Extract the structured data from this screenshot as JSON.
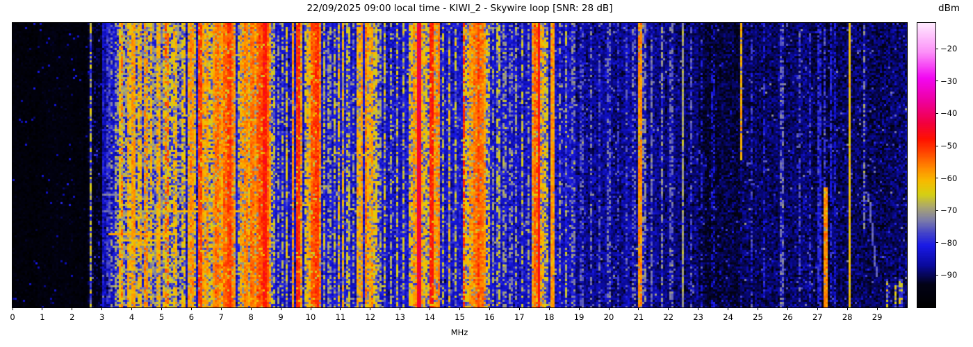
{
  "chart_data": {
    "type": "heatmap",
    "title": "22/09/2025 09:00 local time - KIWI_2 - Skywire loop [SNR: 28 dB]",
    "xlabel": "MHz",
    "ylabel": "",
    "colorbar_label": "dBm",
    "x_range": [
      0,
      30
    ],
    "x_ticks": [
      0,
      1,
      2,
      3,
      4,
      5,
      6,
      7,
      8,
      9,
      10,
      11,
      12,
      13,
      14,
      15,
      16,
      17,
      18,
      19,
      20,
      21,
      22,
      23,
      24,
      25,
      26,
      27,
      28,
      29
    ],
    "value_range": [
      -100,
      -12
    ],
    "colorbar_ticks": [
      -20,
      -30,
      -40,
      -50,
      -60,
      -70,
      -80,
      -90
    ],
    "colorbar_tick_labels": [
      "−20",
      "−30",
      "−40",
      "−50",
      "−60",
      "−70",
      "−80",
      "−90"
    ],
    "colormap_stops": [
      [
        -100,
        "#000000"
      ],
      [
        -93,
        "#020216"
      ],
      [
        -87,
        "#0a0a9e"
      ],
      [
        -81,
        "#1919e6"
      ],
      [
        -77,
        "#4444c8"
      ],
      [
        -73,
        "#7d7da8"
      ],
      [
        -69,
        "#aaa670"
      ],
      [
        -65,
        "#d6d012"
      ],
      [
        -61,
        "#f7bb00"
      ],
      [
        -57,
        "#ff8c00"
      ],
      [
        -52,
        "#ff4500"
      ],
      [
        -48,
        "#ff1200"
      ],
      [
        -43,
        "#f2003e"
      ],
      [
        -36,
        "#ee00a0"
      ],
      [
        -29,
        "#f207f2"
      ],
      [
        -21,
        "#fc90f8"
      ],
      [
        -12,
        "#ffeaff"
      ]
    ],
    "noise_bands": [
      [
        0.0,
        2.55,
        -96.5,
        1.8,
        0.015
      ],
      [
        2.55,
        3.0,
        -93.0,
        2.2,
        0.03
      ],
      [
        3.0,
        3.35,
        -87.0,
        2.8,
        0.05
      ],
      [
        3.35,
        9.0,
        -84.0,
        3.0,
        0.06
      ],
      [
        9.0,
        16.0,
        -83.5,
        3.0,
        0.06
      ],
      [
        16.0,
        18.9,
        -84.5,
        3.0,
        0.05
      ],
      [
        18.9,
        21.5,
        -87.5,
        2.8,
        0.04
      ],
      [
        21.5,
        23.0,
        -88.5,
        2.6,
        0.04
      ],
      [
        23.0,
        24.4,
        -91.5,
        2.2,
        0.025
      ],
      [
        24.4,
        27.0,
        -89.5,
        2.5,
        0.035
      ],
      [
        27.0,
        30.0,
        -90.0,
        2.5,
        0.045
      ]
    ],
    "signals": [
      [
        2.62,
        0.03,
        -66,
        0.55
      ],
      [
        3.05,
        0.03,
        -82,
        0.6
      ],
      [
        3.2,
        0.05,
        -78,
        0.7
      ],
      [
        3.33,
        0.03,
        -72,
        0.45
      ],
      [
        3.5,
        0.03,
        -70,
        0.5
      ],
      [
        3.6,
        0.04,
        -62,
        0.85
      ],
      [
        3.66,
        0.03,
        -55,
        0.5
      ],
      [
        3.73,
        0.03,
        -68,
        0.6
      ],
      [
        3.8,
        0.04,
        -70,
        0.5
      ],
      [
        3.88,
        0.05,
        -60,
        0.8
      ],
      [
        3.96,
        0.04,
        -63,
        0.8
      ],
      [
        4.04,
        0.05,
        -58,
        0.85
      ],
      [
        4.12,
        0.03,
        -68,
        0.5
      ],
      [
        4.22,
        0.04,
        -62,
        0.7
      ],
      [
        4.31,
        0.04,
        -60,
        0.75
      ],
      [
        4.4,
        0.03,
        -70,
        0.5
      ],
      [
        4.47,
        0.05,
        -57,
        0.6
      ],
      [
        4.57,
        0.03,
        -66,
        0.5
      ],
      [
        4.66,
        0.04,
        -61,
        0.7
      ],
      [
        4.77,
        0.03,
        -70,
        0.6
      ],
      [
        4.88,
        0.04,
        -60,
        0.75
      ],
      [
        4.98,
        0.03,
        -72,
        0.5
      ],
      [
        5.06,
        0.04,
        -62,
        0.6
      ],
      [
        5.18,
        0.05,
        -54,
        0.45
      ],
      [
        5.3,
        0.03,
        -65,
        0.5
      ],
      [
        5.45,
        0.04,
        -61,
        0.65
      ],
      [
        5.6,
        0.03,
        -70,
        0.5
      ],
      [
        5.75,
        0.04,
        -63,
        0.6
      ],
      [
        5.9,
        0.04,
        -60,
        0.8
      ],
      [
        5.97,
        0.04,
        -57,
        0.8
      ],
      [
        6.05,
        0.04,
        -58,
        0.75
      ],
      [
        6.12,
        0.03,
        -62,
        0.6
      ],
      [
        6.29,
        0.05,
        -52,
        0.9
      ],
      [
        6.45,
        0.04,
        -60,
        0.7
      ],
      [
        6.55,
        0.04,
        -57,
        0.75
      ],
      [
        6.65,
        0.03,
        -63,
        0.6
      ],
      [
        6.75,
        0.04,
        -58,
        0.8
      ],
      [
        6.85,
        0.05,
        -55,
        0.85
      ],
      [
        6.95,
        0.04,
        -57,
        0.8
      ],
      [
        7.05,
        0.04,
        -59,
        0.75
      ],
      [
        7.15,
        0.05,
        -54,
        0.85
      ],
      [
        7.25,
        0.05,
        -51,
        0.9
      ],
      [
        7.35,
        0.05,
        -55,
        0.85
      ],
      [
        7.45,
        0.04,
        -58,
        0.7
      ],
      [
        7.58,
        0.03,
        -64,
        0.5
      ],
      [
        7.7,
        0.04,
        -59,
        0.7
      ],
      [
        7.82,
        0.05,
        -56,
        0.8
      ],
      [
        7.92,
        0.04,
        -60,
        0.65
      ],
      [
        8.02,
        0.05,
        -55,
        0.85
      ],
      [
        8.12,
        0.04,
        -58,
        0.7
      ],
      [
        8.22,
        0.05,
        -54,
        0.85
      ],
      [
        8.32,
        0.05,
        -52,
        0.9
      ],
      [
        8.44,
        0.06,
        -48,
        0.95
      ],
      [
        8.53,
        0.05,
        -53,
        0.9
      ],
      [
        8.62,
        0.04,
        -58,
        0.7
      ],
      [
        8.75,
        0.03,
        -66,
        0.5
      ],
      [
        8.9,
        0.03,
        -70,
        0.45
      ],
      [
        9.05,
        0.03,
        -68,
        0.5
      ],
      [
        9.2,
        0.04,
        -63,
        0.6
      ],
      [
        9.4,
        0.05,
        -58,
        0.8
      ],
      [
        9.58,
        0.05,
        -50,
        0.92
      ],
      [
        9.7,
        0.04,
        -59,
        0.75
      ],
      [
        9.82,
        0.03,
        -64,
        0.6
      ],
      [
        9.95,
        0.04,
        -60,
        0.7
      ],
      [
        10.08,
        0.06,
        -53,
        0.9
      ],
      [
        10.18,
        0.06,
        -51,
        0.9
      ],
      [
        10.28,
        0.04,
        -56,
        0.8
      ],
      [
        10.45,
        0.03,
        -66,
        0.5
      ],
      [
        10.62,
        0.03,
        -70,
        0.45
      ],
      [
        10.8,
        0.03,
        -66,
        0.5
      ],
      [
        10.95,
        0.03,
        -62,
        0.55
      ],
      [
        11.08,
        0.04,
        -60,
        0.6
      ],
      [
        11.25,
        0.03,
        -66,
        0.5
      ],
      [
        11.45,
        0.03,
        -70,
        0.45
      ],
      [
        11.6,
        0.04,
        -60,
        0.7
      ],
      [
        11.72,
        0.04,
        -58,
        0.75
      ],
      [
        11.85,
        0.05,
        -56,
        0.8
      ],
      [
        11.95,
        0.04,
        -60,
        0.7
      ],
      [
        12.05,
        0.04,
        -58,
        0.75
      ],
      [
        12.16,
        0.03,
        -63,
        0.6
      ],
      [
        12.3,
        0.03,
        -68,
        0.45
      ],
      [
        12.5,
        0.03,
        -64,
        0.5
      ],
      [
        12.7,
        0.03,
        -68,
        0.45
      ],
      [
        12.9,
        0.03,
        -64,
        0.5
      ],
      [
        13.1,
        0.03,
        -66,
        0.5
      ],
      [
        13.35,
        0.03,
        -62,
        0.6
      ],
      [
        13.5,
        0.04,
        -58,
        0.75
      ],
      [
        13.64,
        0.05,
        -44,
        1.0
      ],
      [
        13.75,
        0.03,
        -60,
        0.7
      ],
      [
        13.85,
        0.04,
        -62,
        0.6
      ],
      [
        13.95,
        0.03,
        -64,
        0.5
      ],
      [
        14.08,
        0.05,
        -49,
        0.92
      ],
      [
        14.2,
        0.03,
        -58,
        0.7
      ],
      [
        14.31,
        0.04,
        -56,
        0.8
      ],
      [
        14.45,
        0.03,
        -66,
        0.45
      ],
      [
        14.65,
        0.03,
        -62,
        0.5
      ],
      [
        14.85,
        0.03,
        -66,
        0.45
      ],
      [
        15.13,
        0.04,
        -50,
        0.6
      ],
      [
        15.25,
        0.04,
        -62,
        0.6
      ],
      [
        15.38,
        0.04,
        -58,
        0.7
      ],
      [
        15.5,
        0.05,
        -55,
        0.85
      ],
      [
        15.62,
        0.05,
        -52,
        0.9
      ],
      [
        15.72,
        0.05,
        -55,
        0.9
      ],
      [
        15.82,
        0.04,
        -58,
        0.8
      ],
      [
        15.95,
        0.03,
        -64,
        0.5
      ],
      [
        16.1,
        0.03,
        -70,
        0.5
      ],
      [
        16.3,
        0.03,
        -66,
        0.5
      ],
      [
        16.5,
        0.03,
        -70,
        0.45
      ],
      [
        16.7,
        0.03,
        -72,
        0.4
      ],
      [
        16.9,
        0.03,
        -70,
        0.45
      ],
      [
        17.1,
        0.03,
        -66,
        0.5
      ],
      [
        17.3,
        0.03,
        -70,
        0.45
      ],
      [
        17.48,
        0.04,
        -58,
        0.7
      ],
      [
        17.55,
        0.04,
        -54,
        0.8
      ],
      [
        17.66,
        0.06,
        -47,
        1.0
      ],
      [
        17.76,
        0.03,
        -60,
        0.6
      ],
      [
        17.9,
        0.03,
        -64,
        0.5
      ],
      [
        18.1,
        0.025,
        -58,
        0.95
      ],
      [
        18.35,
        0.03,
        -70,
        0.5
      ],
      [
        18.55,
        0.03,
        -68,
        0.5
      ],
      [
        18.8,
        0.03,
        -72,
        0.4
      ],
      [
        19.1,
        0.03,
        -76,
        0.5
      ],
      [
        19.4,
        0.03,
        -74,
        0.45
      ],
      [
        19.7,
        0.03,
        -76,
        0.4
      ],
      [
        20.0,
        0.03,
        -74,
        0.45
      ],
      [
        20.3,
        0.03,
        -78,
        0.4
      ],
      [
        20.6,
        0.03,
        -76,
        0.4
      ],
      [
        20.85,
        0.03,
        -74,
        0.4
      ],
      [
        21.05,
        0.05,
        -57,
        0.92
      ],
      [
        21.18,
        0.03,
        -72,
        0.5
      ],
      [
        21.45,
        0.025,
        -74,
        0.6
      ],
      [
        21.8,
        0.025,
        -72,
        0.5
      ],
      [
        22.1,
        0.025,
        -74,
        0.5
      ],
      [
        22.5,
        0.02,
        -70,
        0.9
      ],
      [
        22.75,
        0.02,
        -76,
        0.4
      ],
      [
        23.1,
        0.02,
        -80,
        0.35
      ],
      [
        23.5,
        0.02,
        -82,
        0.3
      ],
      [
        24.43,
        0.03,
        -60,
        0.85,
        0,
        0.48
      ],
      [
        24.8,
        0.02,
        -78,
        0.4
      ],
      [
        25.2,
        0.02,
        -80,
        0.35
      ],
      [
        25.8,
        0.02,
        -74,
        0.5
      ],
      [
        26.4,
        0.02,
        -76,
        0.45
      ],
      [
        26.75,
        0.02,
        -78,
        0.4
      ],
      [
        27.05,
        0.03,
        -80,
        0.7
      ],
      [
        27.25,
        0.05,
        -57,
        0.9,
        0.58,
        1
      ],
      [
        27.25,
        0.04,
        -78,
        0.6,
        0,
        0.58
      ],
      [
        27.45,
        0.03,
        -80,
        0.6
      ],
      [
        27.6,
        0.03,
        -82,
        0.5
      ],
      [
        28.09,
        0.022,
        -62,
        1.0
      ],
      [
        28.55,
        0.02,
        -72,
        0.55,
        0,
        0.75
      ],
      [
        29.35,
        0.03,
        -66,
        0.35,
        0.9,
        1
      ],
      [
        29.6,
        0.03,
        -64,
        0.4,
        0.92,
        1
      ],
      [
        29.8,
        0.03,
        -66,
        0.35,
        0.9,
        1
      ]
    ],
    "horizontal_streaks": [
      [
        0.28,
        5.0,
        9.5,
        -79
      ],
      [
        0.5,
        3.0,
        9.0,
        -78
      ],
      [
        0.595,
        3.0,
        4.1,
        -72
      ],
      [
        0.655,
        5.2,
        8.7,
        -60
      ],
      [
        0.657,
        3.0,
        5.2,
        -76
      ],
      [
        0.66,
        4.3,
        5.2,
        -68
      ],
      [
        0.735,
        3.2,
        5.4,
        -59
      ],
      [
        0.758,
        3.5,
        5.1,
        -62
      ],
      [
        0.772,
        3.9,
        4.6,
        -64
      ]
    ],
    "diagonal_streaks": [
      [
        28.72,
        0.6,
        28.98,
        0.88,
        -75
      ]
    ]
  }
}
